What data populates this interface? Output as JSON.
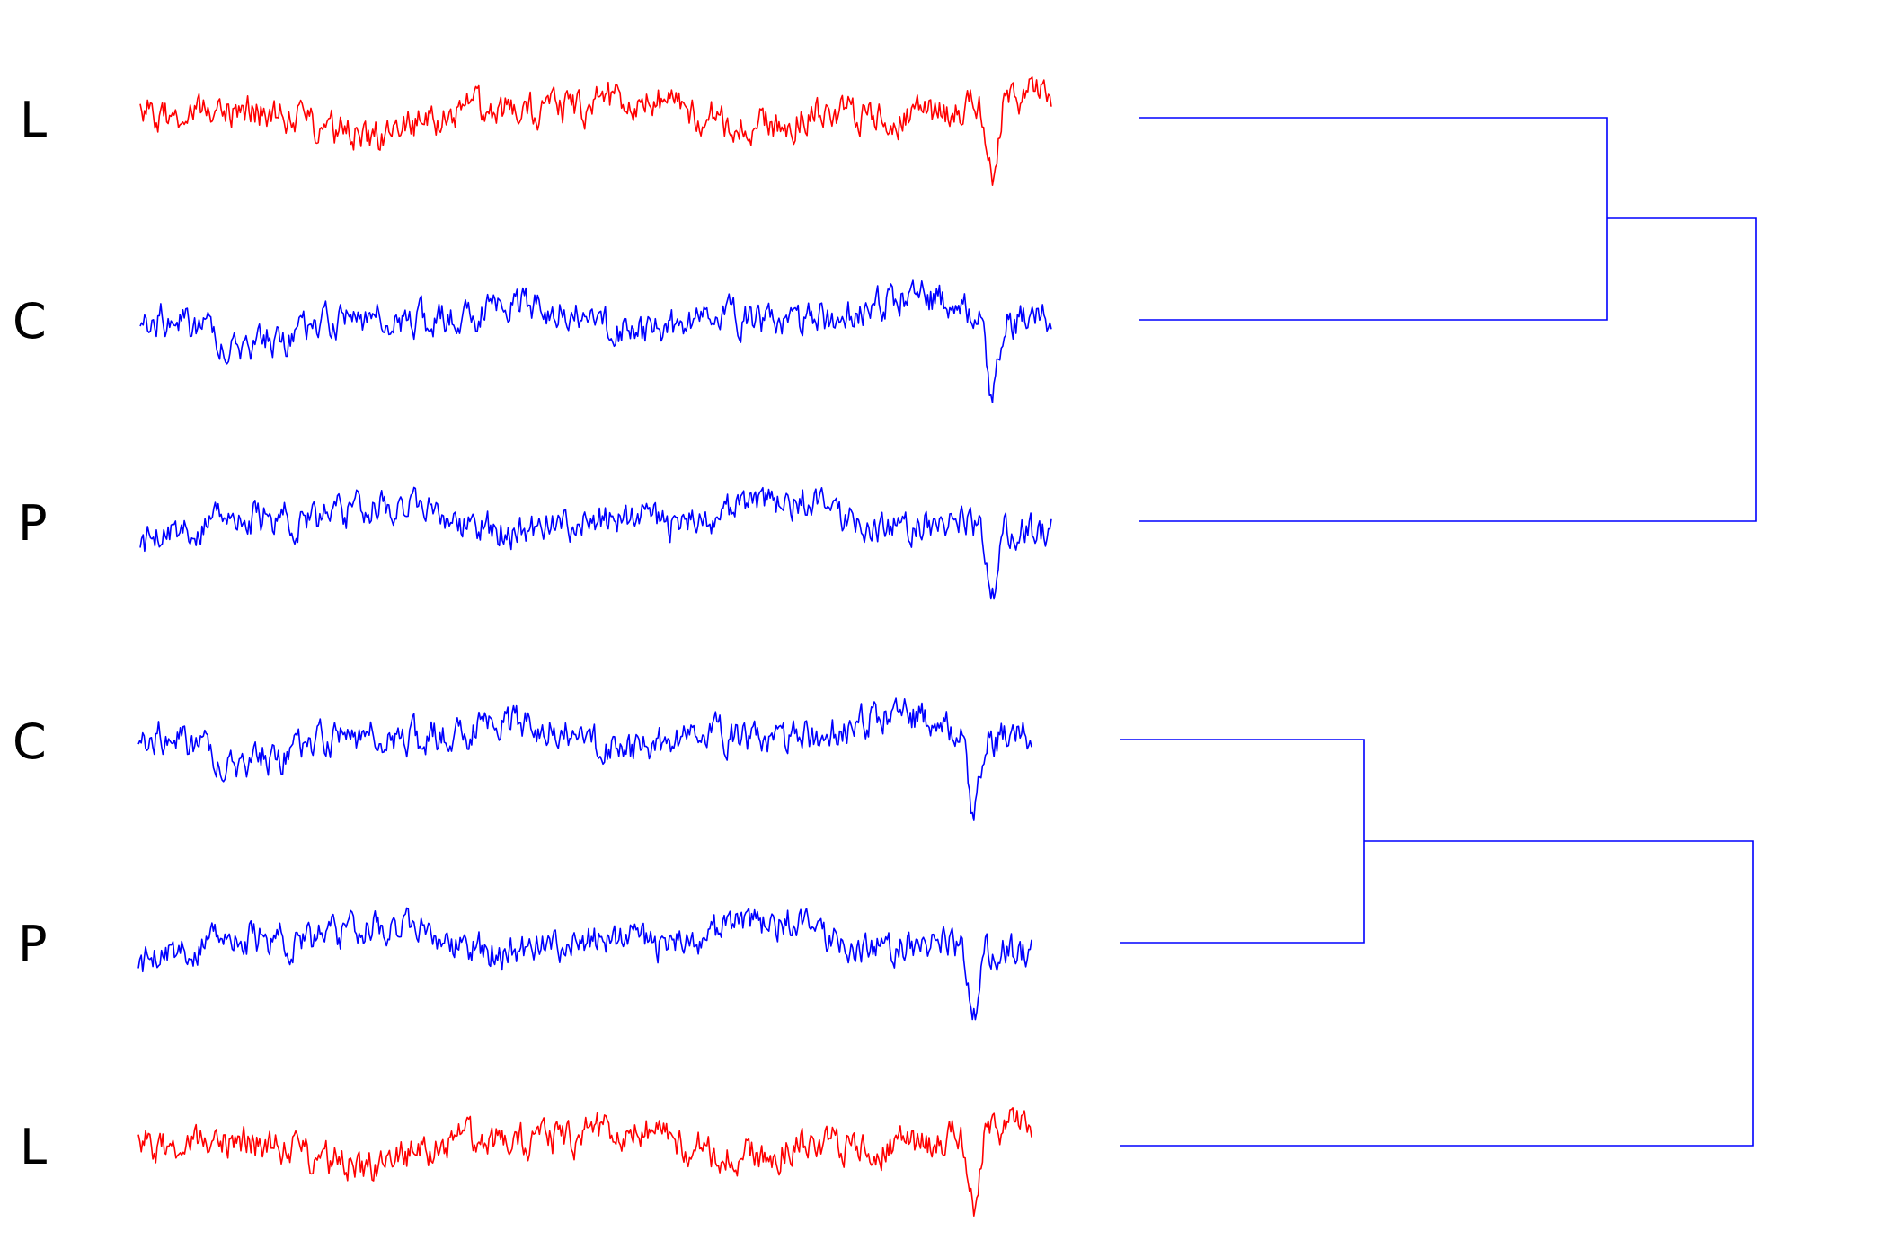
{
  "figure": {
    "groups": [
      {
        "rows": [
          {
            "label": "L",
            "color": "#ff0000",
            "seed": 11
          },
          {
            "label": "C",
            "color": "#0000ff",
            "seed": 23
          },
          {
            "label": "P",
            "color": "#0000ff",
            "seed": 37
          }
        ],
        "link_color": "#0000ff"
      },
      {
        "rows": [
          {
            "label": "C",
            "color": "#0000ff",
            "seed": 23
          },
          {
            "label": "P",
            "color": "#0000ff",
            "seed": 37
          },
          {
            "label": "L",
            "color": "#ff0000",
            "seed": 11
          }
        ],
        "link_color": "#0000ff"
      }
    ]
  }
}
